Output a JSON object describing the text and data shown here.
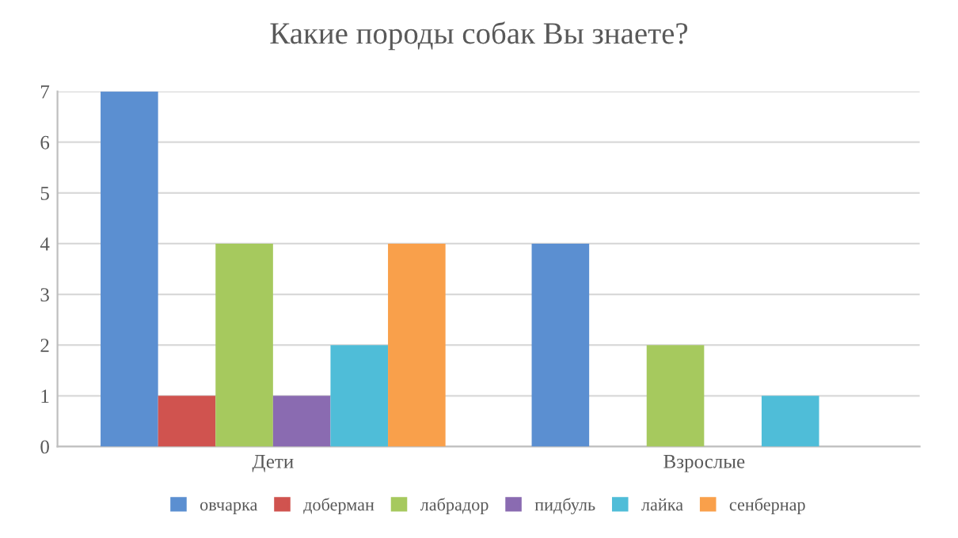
{
  "chart_data": {
    "type": "bar",
    "title": "Какие породы собак Вы знаете?",
    "categories": [
      "Дети",
      "Взрослые"
    ],
    "series": [
      {
        "name": "овчарка",
        "color": "#5b8fd1",
        "values": [
          7,
          4
        ]
      },
      {
        "name": "доберман",
        "color": "#d0534f",
        "values": [
          1,
          0
        ]
      },
      {
        "name": "лабрадор",
        "color": "#a6c95e",
        "values": [
          4,
          2
        ]
      },
      {
        "name": "пидбуль",
        "color": "#8a6bb1",
        "values": [
          1,
          0
        ]
      },
      {
        "name": "лайка",
        "color": "#4fbdd8",
        "values": [
          2,
          1
        ]
      },
      {
        "name": "сенбернар",
        "color": "#f9a04b",
        "values": [
          4,
          0
        ]
      }
    ],
    "ylim": [
      0,
      7
    ],
    "yticks": [
      0,
      1,
      2,
      3,
      4,
      5,
      6,
      7
    ],
    "grid": "y",
    "legend": "bottom"
  }
}
